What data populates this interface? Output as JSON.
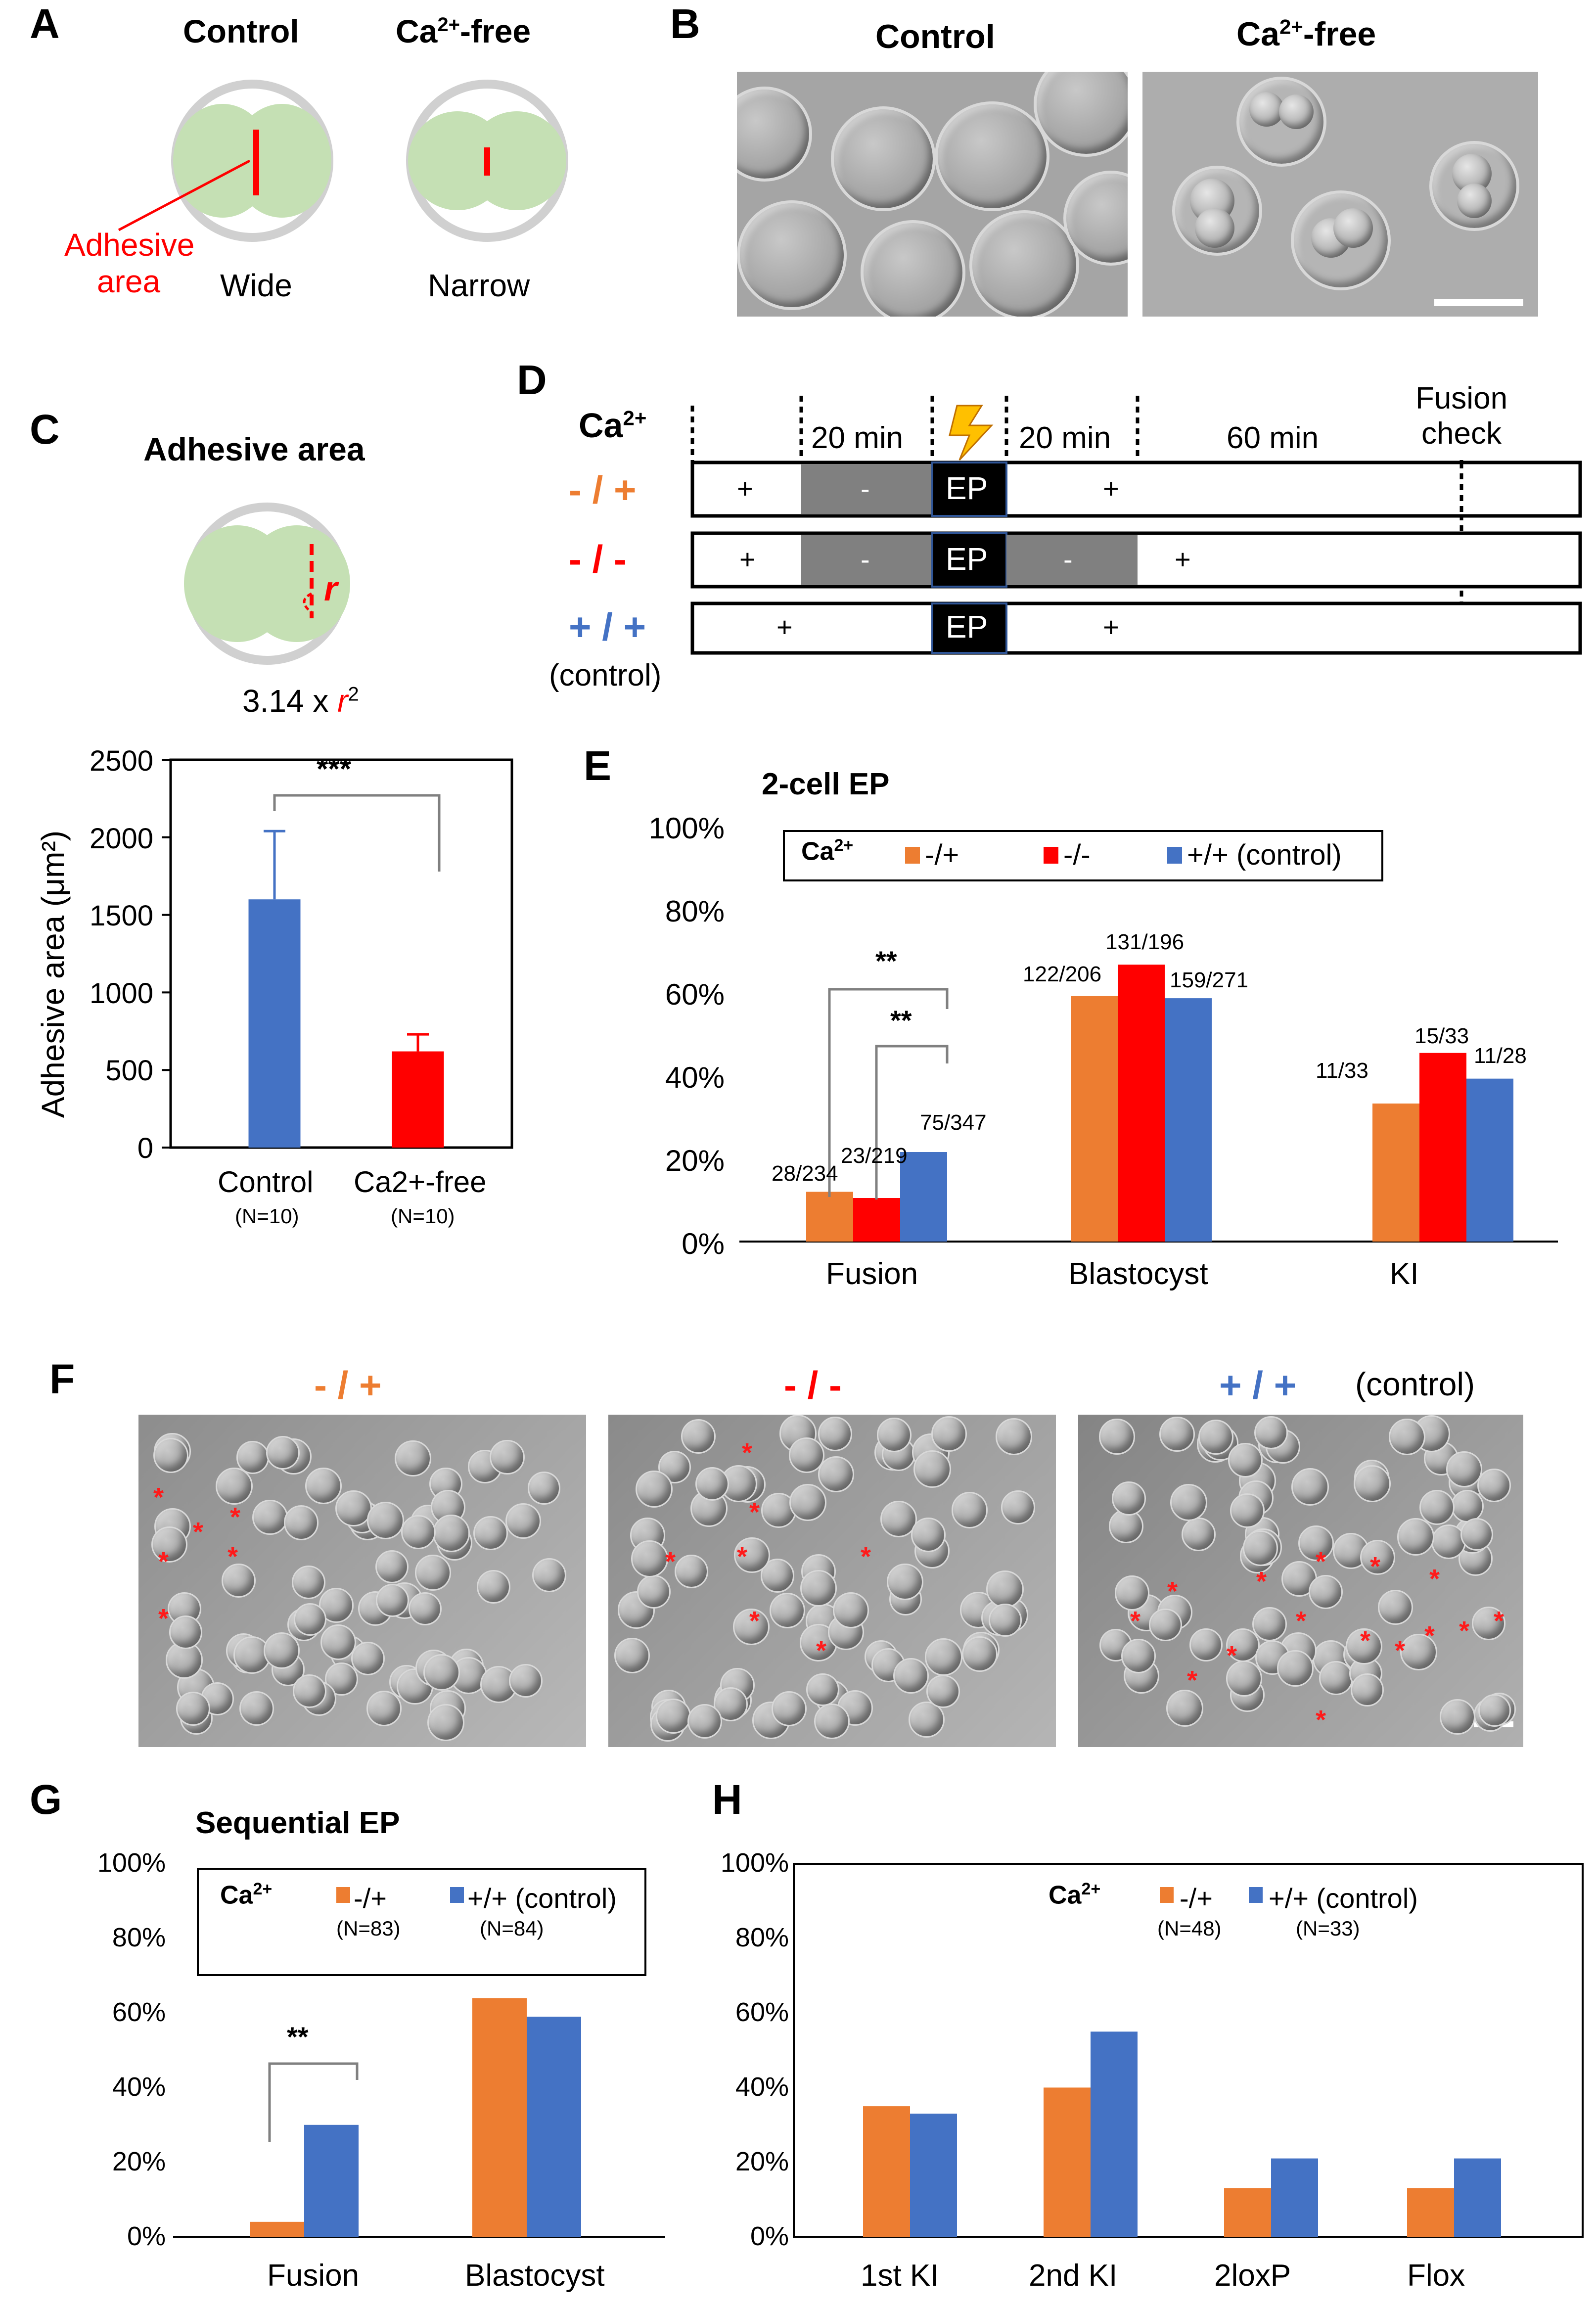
{
  "panel_labels": [
    "A",
    "B",
    "C",
    "D",
    "E",
    "F",
    "G",
    "H"
  ],
  "colors": {
    "orange": "#ED7D31",
    "red": "#FF0000",
    "blue": "#4472C4",
    "green": "#C5E0B4",
    "gray": "#808080"
  },
  "panelA": {
    "control": "Control",
    "ca_free_prefix": "Ca",
    "ca_free_sup": "2+",
    "ca_free_suffix": "-free",
    "adhesive_line1": "Adhesive",
    "adhesive_line2": "area",
    "wide": "Wide",
    "narrow": "Narrow"
  },
  "panelB": {
    "control": "Control",
    "ca_free_prefix": "Ca",
    "ca_free_sup": "2+",
    "ca_free_suffix": "-free"
  },
  "panelC": {
    "title": "Adhesive area",
    "r_label": "r",
    "formula_prefix": "3.14 x ",
    "formula_r": "r",
    "formula_sup": "2",
    "ylabel": "Adhesive area (μm²)",
    "significance": "***",
    "categories": [
      "Control",
      "Ca2+-free"
    ],
    "n_labels": [
      "(N=10)",
      "(N=10)"
    ],
    "yticks": [
      "2500",
      "2000",
      "1500",
      "1000",
      "500",
      "0"
    ]
  },
  "panelD": {
    "ca_label": "Ca",
    "ca_sup": "2+",
    "t20a": "20 min",
    "t20b": "20 min",
    "t60": "60 min",
    "fusion1": "Fusion",
    "fusion2": "check",
    "ep": "EP",
    "rows": [
      {
        "label": "- / +",
        "cells": [
          "+",
          "-",
          "+"
        ]
      },
      {
        "label": "- / -",
        "cells": [
          "+",
          "-",
          "-",
          "+"
        ]
      },
      {
        "label": "+ / +",
        "cells": [
          "+",
          "+"
        ]
      }
    ],
    "control_note": "(control)"
  },
  "panelE": {
    "title": "2-cell EP",
    "legend_prefix": "Ca",
    "legend_sup": "2+",
    "legend": [
      "-/+",
      "-/-",
      "+/+ (control)"
    ],
    "yticks": [
      "100%",
      "80%",
      "60%",
      "40%",
      "20%",
      "0%"
    ],
    "sig1": "**",
    "sig2": "**",
    "ratios": [
      "28/234",
      "23/219",
      "75/347",
      "122/206",
      "131/196",
      "159/271",
      "11/33",
      "15/33",
      "11/28"
    ]
  },
  "panelF": {
    "labels": [
      "- / +",
      "- / -",
      "+ / +"
    ],
    "control_note": "(control)"
  },
  "panelG": {
    "title": "Sequential EP",
    "legend_prefix": "Ca",
    "legend_sup": "2+",
    "legend": [
      "-/+",
      "+/+ (control)"
    ],
    "n_labels": [
      "(N=83)",
      "(N=84)"
    ],
    "yticks": [
      "100%",
      "80%",
      "60%",
      "40%",
      "20%",
      "0%"
    ],
    "sig": "**"
  },
  "panelH": {
    "legend_prefix": "Ca",
    "legend_sup": "2+",
    "legend": [
      "-/+",
      "+/+ (control)"
    ],
    "n_labels": [
      "(N=48)",
      "(N=33)"
    ],
    "yticks": [
      "100%",
      "80%",
      "60%",
      "40%",
      "20%",
      "0%"
    ]
  },
  "chart_data": [
    {
      "panel": "C",
      "type": "bar",
      "title": "",
      "ylabel": "Adhesive area (μm²)",
      "categories": [
        "Control",
        "Ca2+-free"
      ],
      "values": [
        1600,
        620
      ],
      "errors": [
        440,
        110
      ],
      "bar_colors": [
        "#4472C4",
        "#FF0000"
      ],
      "ylim": [
        0,
        2500
      ]
    },
    {
      "panel": "E",
      "type": "bar",
      "title": "2-cell EP",
      "categories": [
        "Fusion",
        "Blastocyst",
        "KI"
      ],
      "series": [
        {
          "name": "-/+",
          "values": [
            12.0,
            59.2,
            33.3
          ],
          "labels": [
            "28/234",
            "122/206",
            "11/33"
          ]
        },
        {
          "name": "-/-",
          "values": [
            10.5,
            66.8,
            45.5
          ],
          "labels": [
            "23/219",
            "131/196",
            "15/33"
          ]
        },
        {
          "name": "+/+ (control)",
          "values": [
            21.6,
            58.7,
            39.3
          ],
          "labels": [
            "75/347",
            "159/271",
            "11/28"
          ]
        }
      ],
      "ylim": [
        0,
        100
      ]
    },
    {
      "panel": "G",
      "type": "bar",
      "title": "Sequential EP",
      "categories": [
        "Fusion",
        "Blastocyst"
      ],
      "series": [
        {
          "name": "-/+",
          "values": [
            4,
            64
          ]
        },
        {
          "name": "+/+ (control)",
          "values": [
            30,
            59
          ]
        }
      ],
      "ylim": [
        0,
        100
      ]
    },
    {
      "panel": "H",
      "type": "bar",
      "title": "",
      "categories": [
        "1st KI",
        "2nd KI",
        "2loxP",
        "Flox"
      ],
      "series": [
        {
          "name": "-/+",
          "values": [
            35,
            40,
            13,
            13
          ]
        },
        {
          "name": "+/+ (control)",
          "values": [
            33,
            55,
            21,
            21
          ]
        }
      ],
      "ylim": [
        0,
        100
      ]
    }
  ]
}
